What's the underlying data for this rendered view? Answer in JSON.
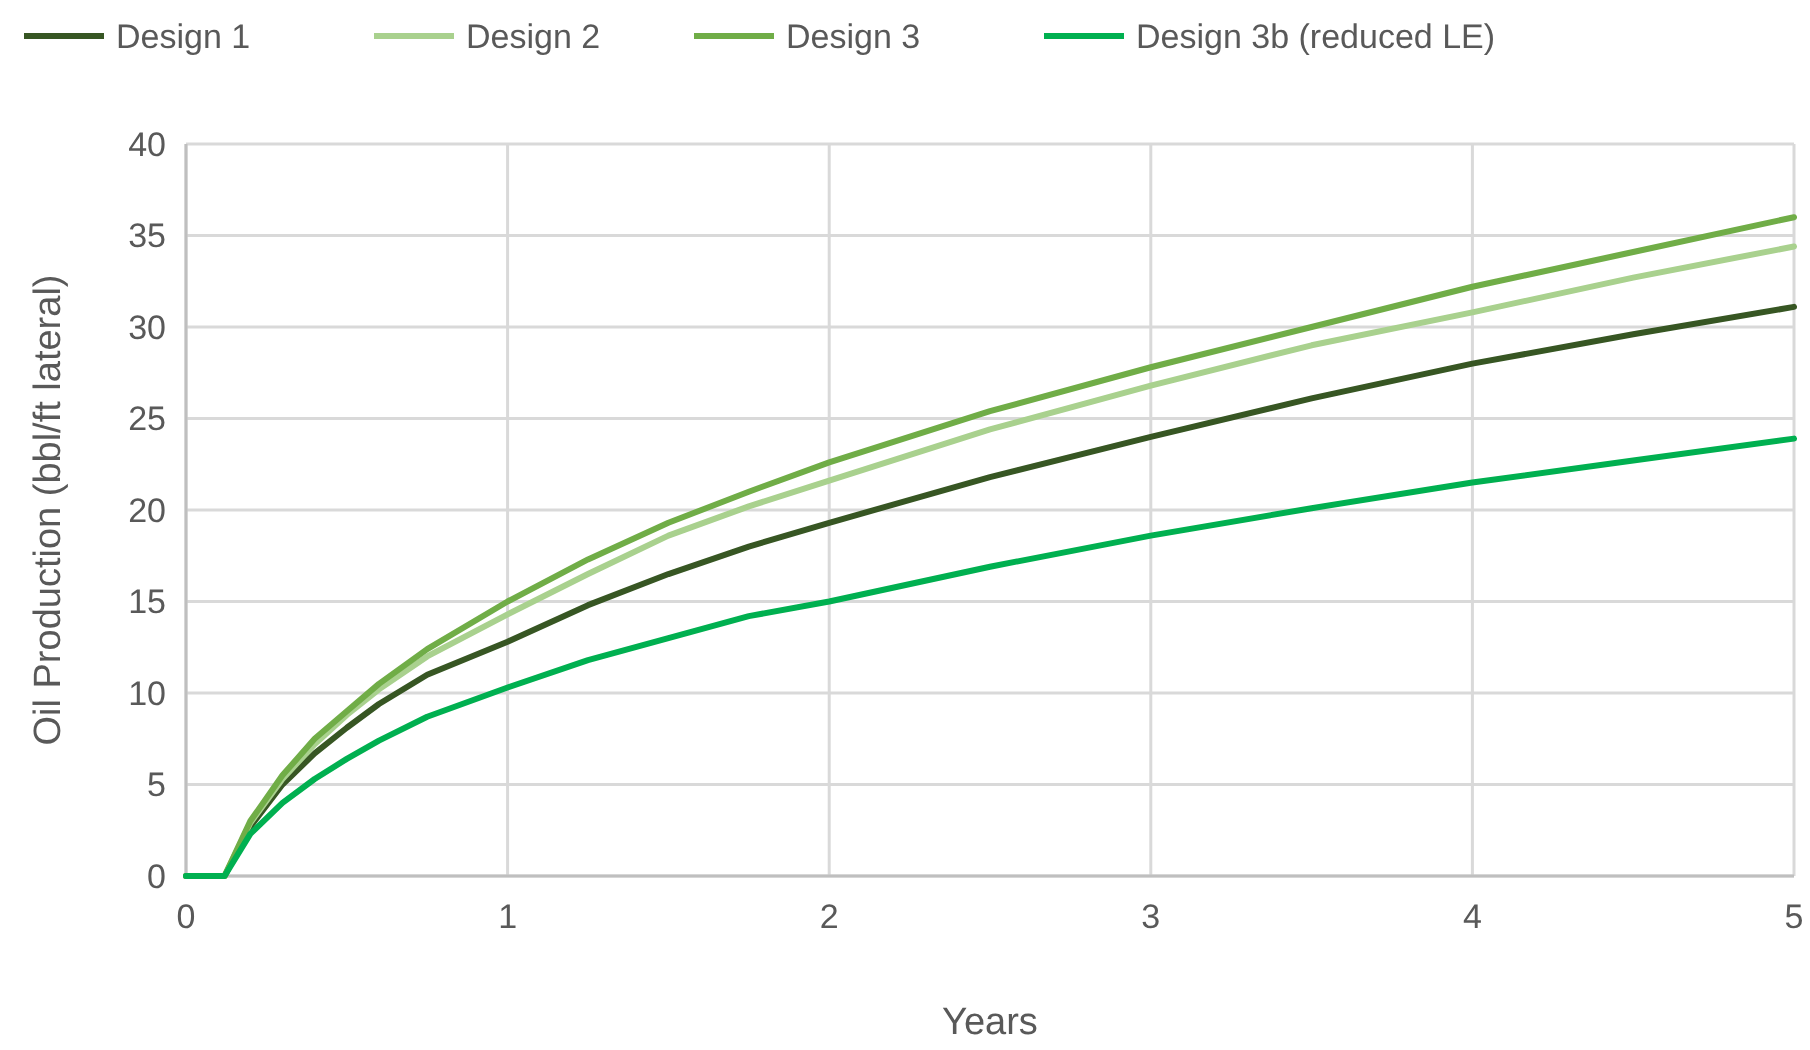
{
  "chart_data": {
    "type": "line",
    "xlabel": "Years",
    "ylabel": "Oil Production (bbl/ft lateral)",
    "x": [
      0,
      0.12,
      0.2,
      0.3,
      0.4,
      0.5,
      0.6,
      0.75,
      1,
      1.25,
      1.5,
      1.75,
      2,
      2.5,
      3,
      3.5,
      4,
      4.5,
      5
    ],
    "series": [
      {
        "name": "Design 1",
        "color": "#375623",
        "values": [
          0,
          0,
          2.7,
          5,
          6.7,
          8.1,
          9.4,
          11,
          12.8,
          14.8,
          16.5,
          18,
          19.3,
          21.8,
          24,
          26.1,
          28,
          29.6,
          31.1
        ]
      },
      {
        "name": "Design 2",
        "color": "#a9d18e",
        "values": [
          0,
          0,
          2.9,
          5.3,
          7.2,
          8.8,
          10.2,
          12,
          14.3,
          16.5,
          18.6,
          20.2,
          21.6,
          24.4,
          26.8,
          29,
          30.8,
          32.7,
          34.4
        ]
      },
      {
        "name": "Design 3",
        "color": "#70ad47",
        "values": [
          0,
          0,
          3,
          5.5,
          7.5,
          9,
          10.5,
          12.4,
          15,
          17.3,
          19.3,
          21,
          22.6,
          25.4,
          27.8,
          30,
          32.2,
          34.1,
          36
        ]
      },
      {
        "name": "Design 3b (reduced LE)",
        "color": "#00b050",
        "values": [
          0,
          0,
          2.3,
          4,
          5.3,
          6.4,
          7.4,
          8.7,
          10.3,
          11.8,
          13,
          14.2,
          15,
          16.9,
          18.6,
          20.1,
          21.5,
          22.7,
          23.9
        ]
      }
    ],
    "xlim": [
      0,
      5
    ],
    "xticks": [
      0,
      1,
      2,
      3,
      4,
      5
    ],
    "ylim": [
      0,
      40
    ],
    "yticks": [
      0,
      5,
      10,
      15,
      20,
      25,
      30,
      35,
      40
    ],
    "grid": true,
    "legend": "top",
    "marker": "none",
    "line_style": "solid"
  }
}
